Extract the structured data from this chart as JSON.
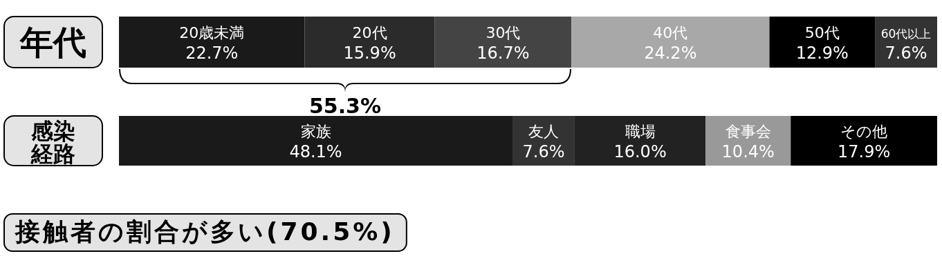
{
  "chart_data": [
    {
      "type": "bar",
      "orientation": "horizontal",
      "stacked": true,
      "categories": [
        "年代"
      ],
      "xlim": [
        0,
        100
      ],
      "series": [
        {
          "name": "20歳未満",
          "color": "#1a1a1a",
          "values": [
            22.7
          ],
          "value_labels": [
            "22.7%"
          ]
        },
        {
          "name": "20代",
          "color": "#2b2b2b",
          "values": [
            15.9
          ],
          "value_labels": [
            "15.9%"
          ]
        },
        {
          "name": "30代",
          "color": "#444444",
          "values": [
            16.7
          ],
          "value_labels": [
            "16.7%"
          ]
        },
        {
          "name": "40代",
          "color": "#a8a8a8",
          "values": [
            24.2
          ],
          "value_labels": [
            "24.2%"
          ]
        },
        {
          "name": "50代",
          "color": "#000000",
          "values": [
            12.9
          ],
          "value_labels": [
            "12.9%"
          ]
        },
        {
          "name": "60代以上",
          "color": "#333333",
          "values": [
            7.6
          ],
          "value_labels": [
            "7.6%"
          ]
        }
      ],
      "annotations": [
        "55.3%"
      ]
    },
    {
      "type": "bar",
      "orientation": "horizontal",
      "stacked": true,
      "categories": [
        "感染経路"
      ],
      "xlim": [
        0,
        100
      ],
      "series": [
        {
          "name": "家族",
          "color": "#1a1a1a",
          "values": [
            48.1
          ],
          "value_labels": [
            "48.1%"
          ]
        },
        {
          "name": "友人",
          "color": "#333333",
          "values": [
            7.6
          ],
          "value_labels": [
            "7.6%"
          ]
        },
        {
          "name": "職場",
          "color": "#222222",
          "values": [
            16.0
          ],
          "value_labels": [
            "16.0%"
          ]
        },
        {
          "name": "食事会",
          "color": "#999999",
          "values": [
            10.4
          ],
          "value_labels": [
            "10.4%"
          ]
        },
        {
          "name": "その他",
          "color": "#000000",
          "values": [
            17.9
          ],
          "value_labels": [
            "17.9%"
          ]
        }
      ],
      "annotations": [
        "接触者の割合が多い(70.5%)"
      ]
    }
  ]
}
